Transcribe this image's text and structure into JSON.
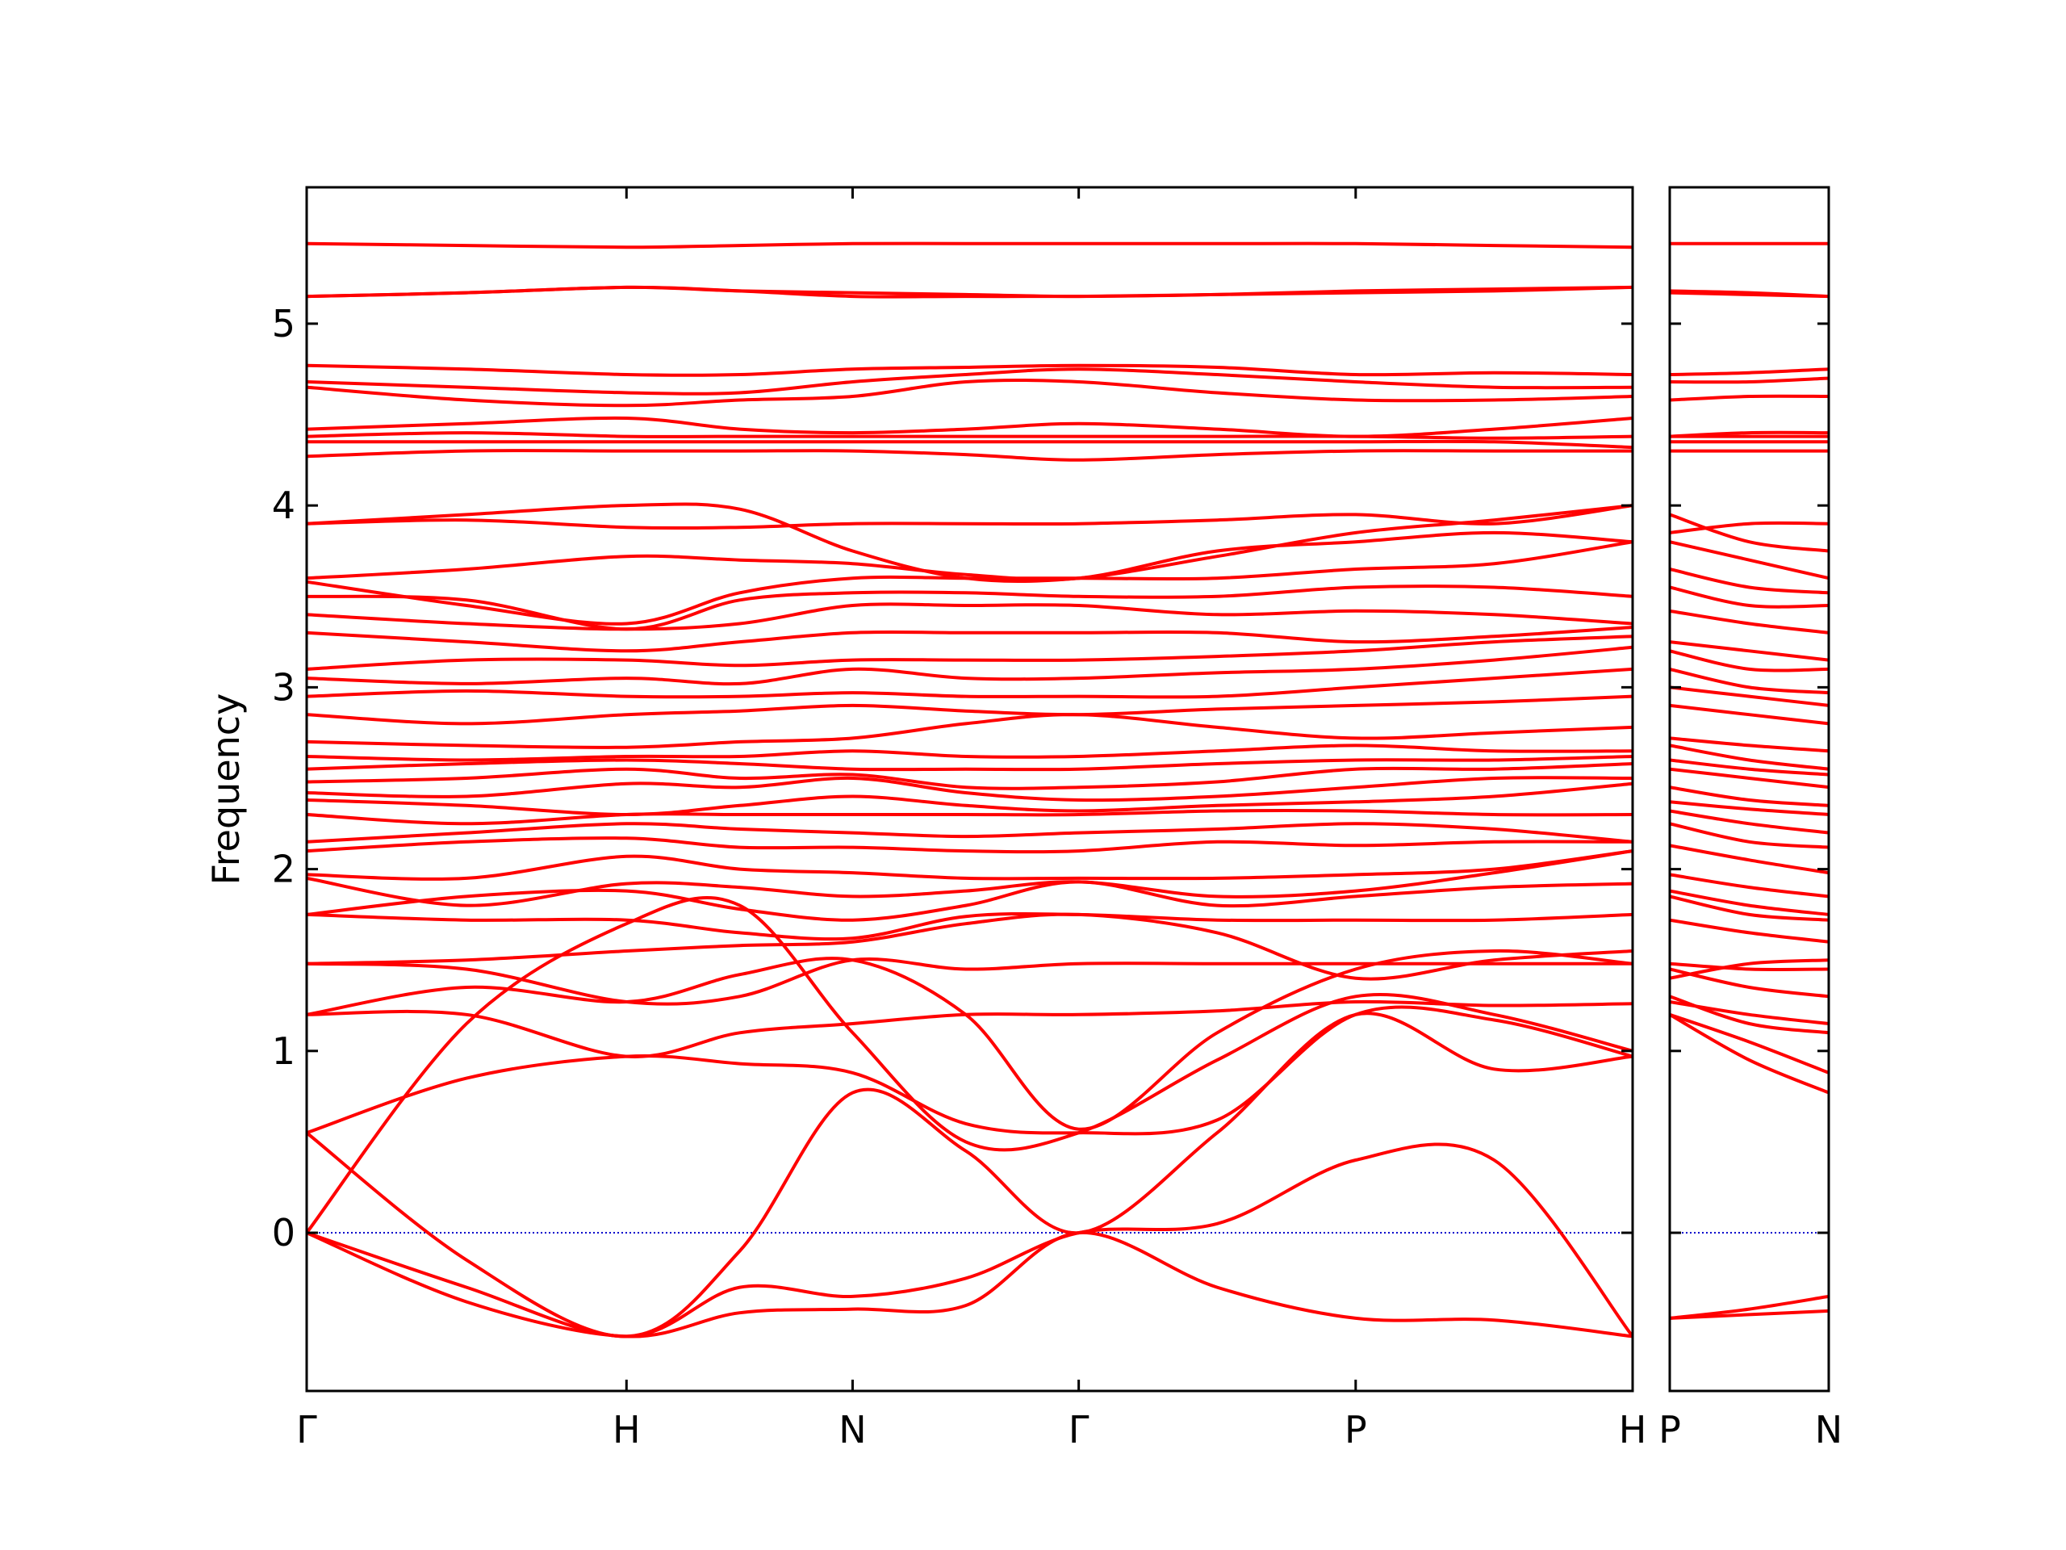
{
  "chart_data": [
    {
      "type": "line",
      "y_label": "Frequency",
      "color": "#ff0000",
      "grid": false,
      "zero_line": {
        "value": 0,
        "color": "#0000cc"
      },
      "xlim": [
        0,
        4.146
      ],
      "ylim": [
        -0.87,
        5.75
      ],
      "xticks": [
        {
          "value": 0,
          "label": "Γ"
        },
        {
          "value": 1,
          "label": "H"
        },
        {
          "value": 1.707,
          "label": "N"
        },
        {
          "value": 2.414,
          "label": "Γ"
        },
        {
          "value": 3.28,
          "label": "P"
        },
        {
          "value": 4.146,
          "label": "H"
        }
      ],
      "yticks": [
        0,
        1,
        2,
        3,
        4,
        5
      ],
      "ytick_labels": true,
      "x": [
        0,
        0.5,
        1,
        1.354,
        1.707,
        2.061,
        2.414,
        2.847,
        3.28,
        3.713,
        4.146
      ],
      "series": [
        {
          "values": [
            0,
            -0.38,
            -0.57,
            -0.44,
            -0.42,
            -0.4,
            0,
            -0.3,
            -0.47,
            -0.48,
            -0.57
          ]
        },
        {
          "values": [
            0,
            -0.3,
            -0.57,
            -0.3,
            -0.35,
            -0.25,
            0,
            0.05,
            0.4,
            0.4,
            -0.57
          ]
        },
        {
          "values": [
            0.55,
            -0.15,
            -0.57,
            -0.1,
            0.77,
            0.45,
            0,
            0.55,
            1.2,
            0.9,
            0.97
          ]
        },
        {
          "values": [
            0.55,
            0.85,
            0.97,
            0.93,
            0.88,
            0.6,
            0.55,
            0.62,
            1.2,
            1.17,
            0.97
          ]
        },
        {
          "values": [
            0,
            1.15,
            1.7,
            1.8,
            1.1,
            0.5,
            0.55,
            0.95,
            1.3,
            1.2,
            1.0
          ]
        },
        {
          "values": [
            1.2,
            1.2,
            0.97,
            1.1,
            1.15,
            1.2,
            1.2,
            1.22,
            1.27,
            1.25,
            1.26
          ]
        },
        {
          "values": [
            1.2,
            1.35,
            1.27,
            1.42,
            1.5,
            1.2,
            0.57,
            1.1,
            1.45,
            1.55,
            1.48
          ]
        },
        {
          "values": [
            1.48,
            1.45,
            1.27,
            1.3,
            1.5,
            1.45,
            1.48,
            1.48,
            1.48,
            1.48,
            1.48
          ]
        },
        {
          "values": [
            1.48,
            1.5,
            1.55,
            1.58,
            1.6,
            1.7,
            1.75,
            1.65,
            1.4,
            1.5,
            1.55
          ]
        },
        {
          "values": [
            1.75,
            1.72,
            1.72,
            1.65,
            1.62,
            1.74,
            1.75,
            1.72,
            1.72,
            1.72,
            1.75
          ]
        },
        {
          "values": [
            1.75,
            1.85,
            1.88,
            1.78,
            1.72,
            1.8,
            1.93,
            1.8,
            1.85,
            1.9,
            1.92
          ]
        },
        {
          "values": [
            1.95,
            1.8,
            1.92,
            1.9,
            1.85,
            1.88,
            1.93,
            1.85,
            1.88,
            1.98,
            2.1
          ]
        },
        {
          "values": [
            1.97,
            1.95,
            2.07,
            2.0,
            1.98,
            1.95,
            1.95,
            1.95,
            1.97,
            2.0,
            2.1
          ]
        },
        {
          "values": [
            2.1,
            2.15,
            2.17,
            2.12,
            2.12,
            2.1,
            2.1,
            2.15,
            2.13,
            2.15,
            2.15
          ]
        },
        {
          "values": [
            2.15,
            2.2,
            2.25,
            2.22,
            2.2,
            2.18,
            2.2,
            2.22,
            2.25,
            2.22,
            2.15
          ]
        },
        {
          "values": [
            2.3,
            2.25,
            2.3,
            2.3,
            2.3,
            2.3,
            2.3,
            2.32,
            2.32,
            2.3,
            2.3
          ]
        },
        {
          "values": [
            2.38,
            2.35,
            2.3,
            2.35,
            2.4,
            2.35,
            2.32,
            2.35,
            2.37,
            2.4,
            2.47
          ]
        },
        {
          "values": [
            2.42,
            2.4,
            2.47,
            2.45,
            2.5,
            2.42,
            2.38,
            2.4,
            2.45,
            2.5,
            2.5
          ]
        },
        {
          "values": [
            2.48,
            2.5,
            2.55,
            2.5,
            2.52,
            2.45,
            2.45,
            2.48,
            2.55,
            2.55,
            2.58
          ]
        },
        {
          "values": [
            2.55,
            2.58,
            2.6,
            2.58,
            2.55,
            2.55,
            2.55,
            2.58,
            2.6,
            2.6,
            2.62
          ]
        },
        {
          "values": [
            2.62,
            2.6,
            2.62,
            2.62,
            2.65,
            2.62,
            2.62,
            2.65,
            2.68,
            2.65,
            2.65
          ]
        },
        {
          "values": [
            2.7,
            2.68,
            2.67,
            2.7,
            2.72,
            2.8,
            2.85,
            2.78,
            2.72,
            2.75,
            2.78
          ]
        },
        {
          "values": [
            2.85,
            2.8,
            2.85,
            2.87,
            2.9,
            2.87,
            2.85,
            2.88,
            2.9,
            2.92,
            2.95
          ]
        },
        {
          "values": [
            2.95,
            2.98,
            2.95,
            2.95,
            2.97,
            2.95,
            2.95,
            2.95,
            3.0,
            3.05,
            3.1
          ]
        },
        {
          "values": [
            3.05,
            3.02,
            3.05,
            3.02,
            3.1,
            3.05,
            3.05,
            3.08,
            3.1,
            3.15,
            3.22
          ]
        },
        {
          "values": [
            3.1,
            3.15,
            3.15,
            3.12,
            3.15,
            3.15,
            3.15,
            3.17,
            3.2,
            3.25,
            3.28
          ]
        },
        {
          "values": [
            3.3,
            3.25,
            3.2,
            3.25,
            3.3,
            3.3,
            3.3,
            3.3,
            3.25,
            3.28,
            3.33
          ]
        },
        {
          "values": [
            3.4,
            3.35,
            3.32,
            3.35,
            3.45,
            3.45,
            3.45,
            3.4,
            3.42,
            3.4,
            3.35
          ]
        },
        {
          "values": [
            3.5,
            3.48,
            3.32,
            3.48,
            3.52,
            3.52,
            3.5,
            3.5,
            3.55,
            3.55,
            3.5
          ]
        },
        {
          "values": [
            3.58,
            3.45,
            3.35,
            3.52,
            3.6,
            3.6,
            3.6,
            3.6,
            3.65,
            3.68,
            3.8
          ]
        },
        {
          "values": [
            3.6,
            3.65,
            3.72,
            3.7,
            3.68,
            3.62,
            3.6,
            3.75,
            3.8,
            3.85,
            3.8
          ]
        },
        {
          "values": [
            3.9,
            3.92,
            3.88,
            3.88,
            3.9,
            3.9,
            3.9,
            3.92,
            3.95,
            3.9,
            4.0
          ]
        },
        {
          "values": [
            3.9,
            3.95,
            4.0,
            3.98,
            3.75,
            3.6,
            3.6,
            3.72,
            3.85,
            3.92,
            4.0
          ]
        },
        {
          "values": [
            4.27,
            4.3,
            4.3,
            4.3,
            4.3,
            4.28,
            4.25,
            4.28,
            4.3,
            4.3,
            4.3
          ]
        },
        {
          "values": [
            4.35,
            4.35,
            4.35,
            4.35,
            4.35,
            4.35,
            4.35,
            4.35,
            4.35,
            4.35,
            4.32
          ]
        },
        {
          "values": [
            4.38,
            4.4,
            4.38,
            4.38,
            4.38,
            4.38,
            4.38,
            4.38,
            4.38,
            4.37,
            4.38
          ]
        },
        {
          "values": [
            4.42,
            4.45,
            4.48,
            4.42,
            4.4,
            4.42,
            4.45,
            4.42,
            4.38,
            4.42,
            4.48
          ]
        },
        {
          "values": [
            4.65,
            4.58,
            4.55,
            4.58,
            4.6,
            4.68,
            4.68,
            4.62,
            4.58,
            4.58,
            4.6
          ]
        },
        {
          "values": [
            4.68,
            4.65,
            4.62,
            4.62,
            4.68,
            4.72,
            4.75,
            4.72,
            4.68,
            4.65,
            4.65
          ]
        },
        {
          "values": [
            4.77,
            4.75,
            4.72,
            4.72,
            4.75,
            4.76,
            4.77,
            4.76,
            4.72,
            4.73,
            4.72
          ]
        },
        {
          "values": [
            5.15,
            5.17,
            5.2,
            5.18,
            5.15,
            5.15,
            5.15,
            5.16,
            5.17,
            5.18,
            5.2
          ]
        },
        {
          "values": [
            5.15,
            5.17,
            5.2,
            5.18,
            5.17,
            5.16,
            5.15,
            5.16,
            5.18,
            5.19,
            5.2
          ]
        },
        {
          "values": [
            5.44,
            5.43,
            5.42,
            5.43,
            5.44,
            5.44,
            5.44,
            5.44,
            5.44,
            5.43,
            5.42
          ]
        }
      ]
    },
    {
      "type": "line",
      "color": "#ff0000",
      "grid": false,
      "zero_line": {
        "value": 0,
        "color": "#0000cc"
      },
      "xlim": [
        0,
        0.5
      ],
      "ylim": [
        -0.87,
        5.75
      ],
      "xticks": [
        {
          "value": 0,
          "label": "P"
        },
        {
          "value": 0.5,
          "label": "N"
        }
      ],
      "yticks": [
        0,
        1,
        2,
        3,
        4,
        5
      ],
      "ytick_labels": false,
      "x": [
        0,
        0.25,
        0.5
      ],
      "series": [
        {
          "values": [
            -0.47,
            -0.45,
            -0.43
          ]
        },
        {
          "values": [
            -0.47,
            -0.42,
            -0.35
          ]
        },
        {
          "values": [
            1.2,
            0.95,
            0.77
          ]
        },
        {
          "values": [
            1.2,
            1.05,
            0.88
          ]
        },
        {
          "values": [
            1.3,
            1.15,
            1.1
          ]
        },
        {
          "values": [
            1.27,
            1.2,
            1.15
          ]
        },
        {
          "values": [
            1.45,
            1.35,
            1.3
          ]
        },
        {
          "values": [
            1.48,
            1.45,
            1.45
          ]
        },
        {
          "values": [
            1.4,
            1.48,
            1.5
          ]
        },
        {
          "values": [
            1.72,
            1.65,
            1.6
          ]
        },
        {
          "values": [
            1.85,
            1.75,
            1.72
          ]
        },
        {
          "values": [
            1.88,
            1.8,
            1.75
          ]
        },
        {
          "values": [
            1.97,
            1.9,
            1.85
          ]
        },
        {
          "values": [
            2.13,
            2.05,
            1.98
          ]
        },
        {
          "values": [
            2.25,
            2.15,
            2.12
          ]
        },
        {
          "values": [
            2.32,
            2.25,
            2.2
          ]
        },
        {
          "values": [
            2.37,
            2.33,
            2.3
          ]
        },
        {
          "values": [
            2.45,
            2.38,
            2.35
          ]
        },
        {
          "values": [
            2.55,
            2.5,
            2.45
          ]
        },
        {
          "values": [
            2.6,
            2.55,
            2.52
          ]
        },
        {
          "values": [
            2.68,
            2.6,
            2.55
          ]
        },
        {
          "values": [
            2.72,
            2.68,
            2.65
          ]
        },
        {
          "values": [
            2.9,
            2.85,
            2.8
          ]
        },
        {
          "values": [
            3.0,
            2.95,
            2.9
          ]
        },
        {
          "values": [
            3.1,
            3.0,
            2.97
          ]
        },
        {
          "values": [
            3.2,
            3.1,
            3.1
          ]
        },
        {
          "values": [
            3.25,
            3.2,
            3.15
          ]
        },
        {
          "values": [
            3.42,
            3.35,
            3.3
          ]
        },
        {
          "values": [
            3.55,
            3.45,
            3.45
          ]
        },
        {
          "values": [
            3.65,
            3.55,
            3.52
          ]
        },
        {
          "values": [
            3.8,
            3.7,
            3.6
          ]
        },
        {
          "values": [
            3.95,
            3.8,
            3.75
          ]
        },
        {
          "values": [
            3.85,
            3.9,
            3.9
          ]
        },
        {
          "values": [
            4.3,
            4.3,
            4.3
          ]
        },
        {
          "values": [
            4.35,
            4.35,
            4.35
          ]
        },
        {
          "values": [
            4.38,
            4.38,
            4.38
          ]
        },
        {
          "values": [
            4.38,
            4.4,
            4.4
          ]
        },
        {
          "values": [
            4.58,
            4.6,
            4.6
          ]
        },
        {
          "values": [
            4.68,
            4.68,
            4.7
          ]
        },
        {
          "values": [
            4.72,
            4.73,
            4.75
          ]
        },
        {
          "values": [
            5.17,
            5.16,
            5.15
          ]
        },
        {
          "values": [
            5.18,
            5.17,
            5.15
          ]
        },
        {
          "values": [
            5.44,
            5.44,
            5.44
          ]
        }
      ]
    }
  ]
}
